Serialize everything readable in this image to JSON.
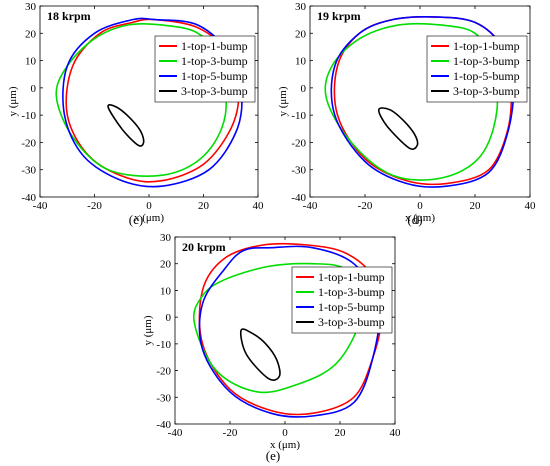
{
  "figure": {
    "panels": [
      {
        "caption": "(c)",
        "chart_data": {
          "type": "line",
          "title": "18 krpm",
          "xlabel": "x (μm)",
          "ylabel": "y (μm)",
          "xlim": [
            -40,
            40
          ],
          "ylim": [
            -40,
            30
          ],
          "xticks": [
            -40,
            -20,
            0,
            20,
            40
          ],
          "yticks": [
            -40,
            -30,
            -20,
            -10,
            0,
            10,
            20,
            30
          ],
          "grid": false,
          "legend_position": "top-right",
          "series": [
            {
              "name": "1-top-1-bump",
              "color": "#ff0000",
              "x": [
                2,
                18,
                30,
                33,
                30,
                20,
                5,
                -8,
                -22,
                -30,
                -28,
                -18,
                -6,
                2
              ],
              "y": [
                25,
                22,
                12,
                -2,
                -15,
                -28,
                -34,
                -33,
                -25,
                -10,
                8,
                20,
                24,
                25
              ]
            },
            {
              "name": "1-top-3-bump",
              "color": "#00dd00",
              "x": [
                5,
                18,
                26,
                28,
                20,
                5,
                -15,
                -28,
                -34,
                -30,
                -20,
                -8,
                5
              ],
              "y": [
                23,
                20,
                10,
                -10,
                -25,
                -32,
                -30,
                -18,
                -3,
                8,
                18,
                23,
                23
              ]
            },
            {
              "name": "1-top-5-bump",
              "color": "#0000ff",
              "x": [
                2,
                18,
                30,
                34,
                32,
                22,
                5,
                -10,
                -24,
                -31,
                -30,
                -20,
                -6,
                2
              ],
              "y": [
                25,
                23,
                12,
                -2,
                -16,
                -30,
                -36,
                -34,
                -25,
                -10,
                8,
                20,
                25,
                25
              ]
            },
            {
              "name": "3-top-3-bump",
              "color": "#000000",
              "x": [
                -15,
                -12,
                -7,
                -3,
                -2,
                -4,
                -10,
                -15
              ],
              "y": [
                -7,
                -7,
                -11,
                -16,
                -20,
                -21,
                -15,
                -7
              ]
            }
          ]
        }
      },
      {
        "caption": "(d)",
        "chart_data": {
          "type": "line",
          "title": "19 krpm",
          "xlabel": "x (μm)",
          "ylabel": "y (μm)",
          "xlim": [
            -40,
            40
          ],
          "ylim": [
            -40,
            30
          ],
          "xticks": [
            -40,
            -20,
            0,
            20,
            40
          ],
          "yticks": [
            -40,
            -30,
            -20,
            -10,
            0,
            10,
            20,
            30
          ],
          "grid": false,
          "legend_position": "top-right",
          "series": [
            {
              "name": "1-top-1-bump",
              "color": "#ff0000",
              "x": [
                5,
                20,
                30,
                33,
                32,
                25,
                10,
                -5,
                -20,
                -30,
                -30,
                -22,
                -10,
                5
              ],
              "y": [
                26,
                24,
                15,
                2,
                -15,
                -30,
                -35,
                -34,
                -26,
                -10,
                8,
                20,
                25,
                26
              ]
            },
            {
              "name": "1-top-3-bump",
              "color": "#00dd00",
              "x": [
                8,
                20,
                26,
                28,
                22,
                8,
                -10,
                -25,
                -34,
                -32,
                -22,
                -8,
                8
              ],
              "y": [
                23,
                20,
                10,
                -8,
                -25,
                -33,
                -32,
                -20,
                -4,
                8,
                18,
                23,
                23
              ]
            },
            {
              "name": "1-top-5-bump",
              "color": "#0000ff",
              "x": [
                5,
                20,
                30,
                34,
                32,
                25,
                10,
                -5,
                -20,
                -31,
                -31,
                -22,
                -10,
                5
              ],
              "y": [
                26,
                24,
                15,
                2,
                -16,
                -31,
                -36,
                -35,
                -27,
                -10,
                8,
                20,
                25,
                26
              ]
            },
            {
              "name": "3-top-3-bump",
              "color": "#000000",
              "x": [
                -15,
                -11,
                -6,
                -2,
                -1,
                -4,
                -12,
                -15
              ],
              "y": [
                -8,
                -8,
                -12,
                -17,
                -21,
                -22,
                -14,
                -8
              ]
            }
          ]
        }
      },
      {
        "caption": "(e)",
        "chart_data": {
          "type": "line",
          "title": "20 krpm",
          "xlabel": "x (μm)",
          "ylabel": "y (μm)",
          "xlim": [
            -40,
            40
          ],
          "ylim": [
            -40,
            30
          ],
          "xticks": [
            -40,
            -20,
            0,
            20,
            40
          ],
          "yticks": [
            -40,
            -30,
            -20,
            -10,
            0,
            10,
            20,
            30
          ],
          "grid": false,
          "legend_position": "top-right",
          "series": [
            {
              "name": "1-top-1-bump",
              "color": "#ff0000",
              "x": [
                8,
                22,
                32,
                35,
                32,
                25,
                10,
                -5,
                -20,
                -30,
                -30,
                -22,
                -8,
                8
              ],
              "y": [
                27,
                24,
                15,
                0,
                -15,
                -30,
                -36,
                -35,
                -27,
                -10,
                10,
                22,
                27,
                27
              ]
            },
            {
              "name": "1-top-3-bump",
              "color": "#00dd00",
              "x": [
                10,
                22,
                28,
                26,
                18,
                5,
                -10,
                -25,
                -33,
                -30,
                -22,
                -6,
                10
              ],
              "y": [
                20,
                18,
                8,
                -5,
                -18,
                -25,
                -28,
                -20,
                -2,
                8,
                14,
                19,
                20
              ]
            },
            {
              "name": "1-top-5-bump",
              "color": "#0000ff",
              "x": [
                -5,
                10,
                25,
                34,
                32,
                25,
                10,
                -5,
                -20,
                -30,
                -30,
                -22,
                -15,
                -5
              ],
              "y": [
                26,
                26,
                20,
                5,
                -15,
                -32,
                -37,
                -36,
                -28,
                -12,
                5,
                18,
                25,
                26
              ]
            },
            {
              "name": "3-top-3-bump",
              "color": "#000000",
              "x": [
                -16,
                -12,
                -7,
                -3,
                -2,
                -6,
                -14,
                -16
              ],
              "y": [
                -5,
                -6,
                -10,
                -16,
                -22,
                -23,
                -14,
                -5
              ]
            }
          ]
        }
      }
    ]
  }
}
